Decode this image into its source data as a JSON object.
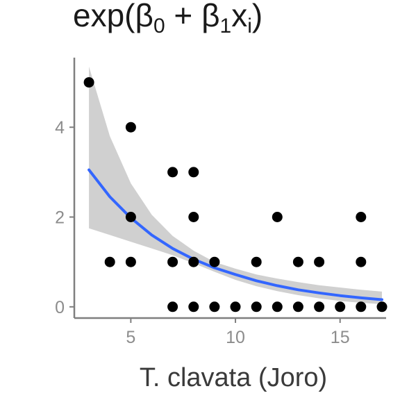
{
  "chart_data": {
    "type": "scatter",
    "title": "exp(β0 + β1xi)",
    "title_parts": {
      "prefix": "exp(β",
      "sub1": "0",
      "mid": " + β",
      "sub2": "1",
      "x": "x",
      "sub3": "i",
      "suffix": ")"
    },
    "xlabel": "T. clavata (Joro)",
    "ylabel": "",
    "xlim": [
      2.3,
      17.2
    ],
    "ylim": [
      -0.25,
      5.55
    ],
    "x_ticks": [
      {
        "value": 5,
        "label": "5"
      },
      {
        "value": 10,
        "label": "10"
      },
      {
        "value": 15,
        "label": "15"
      }
    ],
    "y_ticks": [
      {
        "value": 0,
        "label": "0"
      },
      {
        "value": 2,
        "label": "2"
      },
      {
        "value": 4,
        "label": "4"
      }
    ],
    "grid": false,
    "points": [
      {
        "x": 3,
        "y": 5
      },
      {
        "x": 4,
        "y": 1
      },
      {
        "x": 5,
        "y": 4
      },
      {
        "x": 5,
        "y": 2
      },
      {
        "x": 5,
        "y": 1
      },
      {
        "x": 7,
        "y": 3
      },
      {
        "x": 7,
        "y": 1
      },
      {
        "x": 7,
        "y": 0
      },
      {
        "x": 8,
        "y": 3
      },
      {
        "x": 8,
        "y": 2
      },
      {
        "x": 8,
        "y": 1
      },
      {
        "x": 8,
        "y": 0
      },
      {
        "x": 9,
        "y": 1
      },
      {
        "x": 9,
        "y": 0
      },
      {
        "x": 10,
        "y": 0
      },
      {
        "x": 11,
        "y": 1
      },
      {
        "x": 11,
        "y": 0
      },
      {
        "x": 12,
        "y": 2
      },
      {
        "x": 12,
        "y": 0
      },
      {
        "x": 13,
        "y": 1
      },
      {
        "x": 13,
        "y": 0
      },
      {
        "x": 14,
        "y": 1
      },
      {
        "x": 14,
        "y": 0
      },
      {
        "x": 15,
        "y": 0
      },
      {
        "x": 16,
        "y": 2
      },
      {
        "x": 16,
        "y": 1
      },
      {
        "x": 16,
        "y": 0
      },
      {
        "x": 17,
        "y": 0
      }
    ],
    "fit_line": {
      "x": [
        3,
        4,
        5,
        6,
        7,
        8,
        9,
        10,
        11,
        12,
        13,
        14,
        15,
        16,
        17
      ],
      "y": [
        3.05,
        2.45,
        1.98,
        1.6,
        1.3,
        1.06,
        0.87,
        0.72,
        0.58,
        0.47,
        0.38,
        0.31,
        0.25,
        0.2,
        0.16
      ]
    },
    "confidence_band": {
      "x": [
        3,
        4,
        5,
        6,
        7,
        8,
        9,
        10,
        11,
        12,
        13,
        14,
        15,
        16,
        17
      ],
      "lower": [
        1.75,
        1.6,
        1.45,
        1.3,
        1.15,
        0.97,
        0.78,
        0.6,
        0.46,
        0.35,
        0.26,
        0.19,
        0.13,
        0.09,
        0.06
      ],
      "upper": [
        5.35,
        3.8,
        2.75,
        2.05,
        1.58,
        1.25,
        1.0,
        0.85,
        0.72,
        0.63,
        0.55,
        0.48,
        0.43,
        0.38,
        0.34
      ]
    },
    "colors": {
      "points": "#000000",
      "fit_line": "#3366ff",
      "band": "#d0d0d0",
      "axis": "#7f7f7f",
      "tick_labels": "#8c8c8c"
    }
  }
}
